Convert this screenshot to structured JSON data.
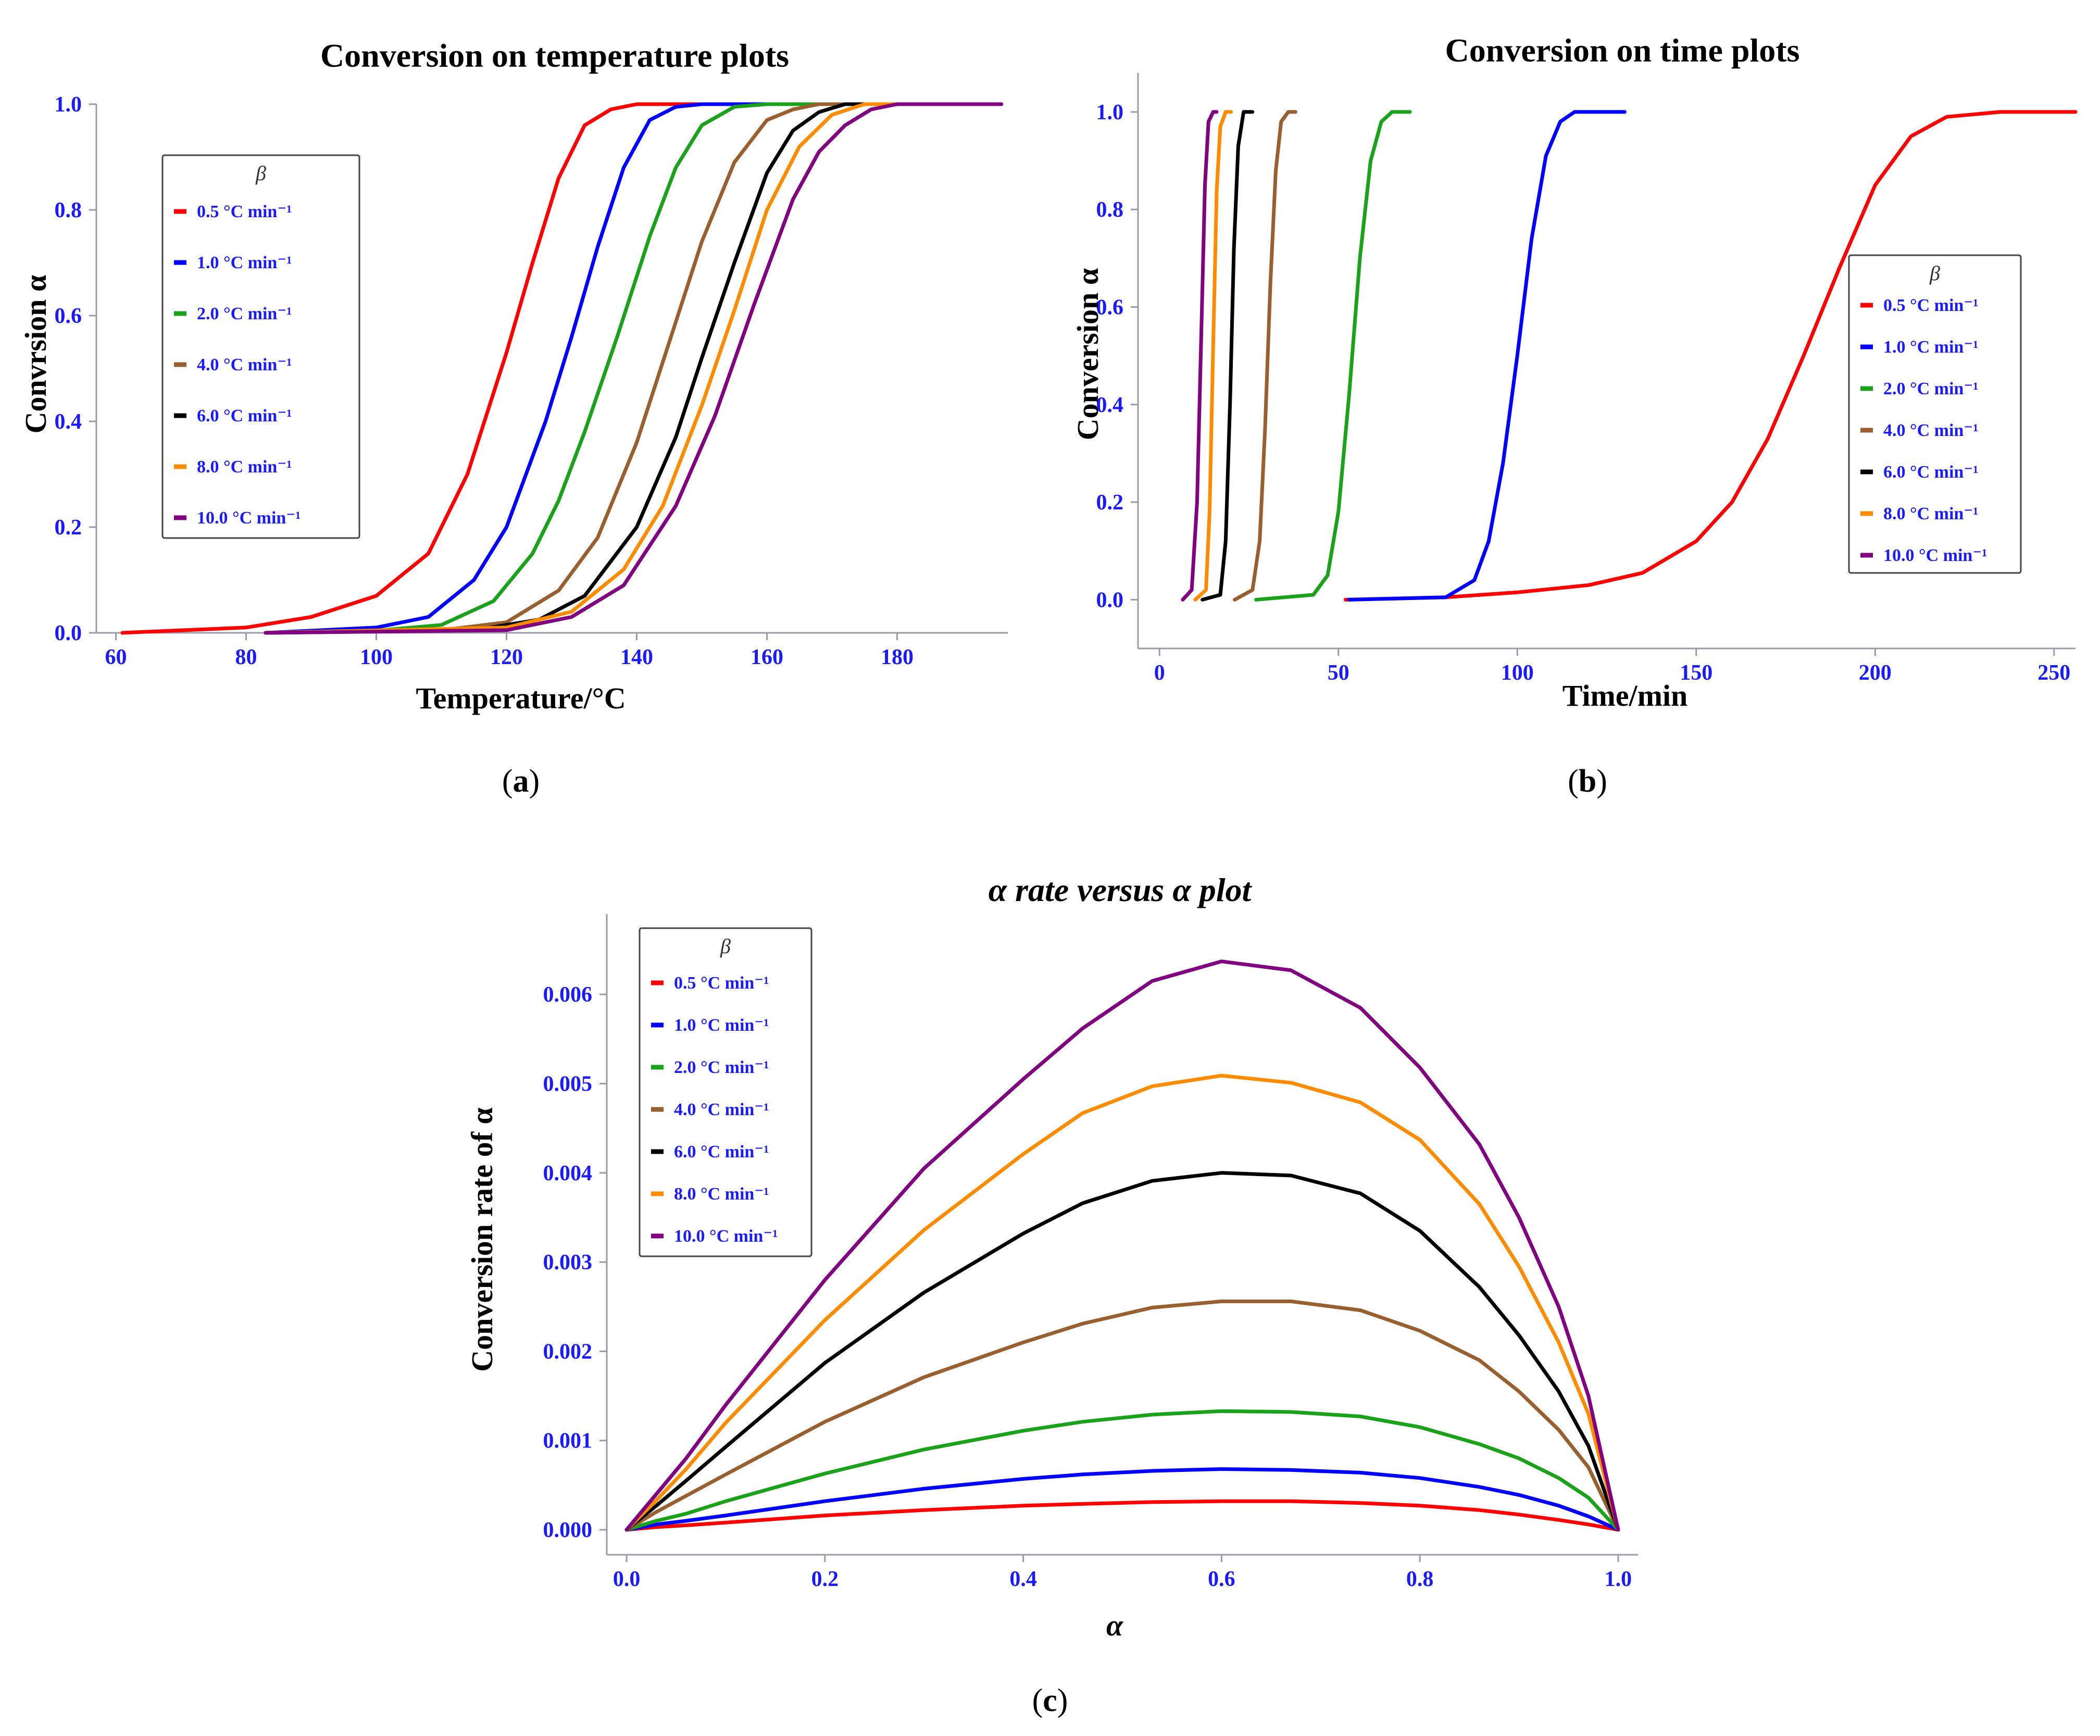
{
  "colors": {
    "text": "#1a1aff",
    "axis": "#9a9aa8",
    "series": [
      "#ff0000",
      "#0000ff",
      "#1aa31a",
      "#9a5f2e",
      "#000000",
      "#ff8c00",
      "#800080"
    ]
  },
  "chart_data": [
    {
      "type": "line",
      "panel": "(a)",
      "panel_prefix": "(",
      "panel_letter": "a",
      "panel_suffix": ")",
      "title": "Conversion on temperature plots",
      "xlabel": "Temperature/°C",
      "ylabel": "Convrsion α",
      "xlim": [
        57,
        197
      ],
      "ylim": [
        0,
        1
      ],
      "xticks": [
        60,
        80,
        100,
        120,
        140,
        160,
        180
      ],
      "yticks": [
        0.0,
        0.2,
        0.4,
        0.6,
        0.8,
        1.0
      ],
      "legend_title": "β",
      "legend_location": "upper-left",
      "series": [
        {
          "name": "0.5 °C min⁻¹",
          "x": [
            61,
            80,
            90,
            100,
            108,
            114,
            120,
            124,
            128,
            132,
            136,
            140,
            148,
            196
          ],
          "y": [
            0.0,
            0.01,
            0.03,
            0.07,
            0.15,
            0.3,
            0.53,
            0.7,
            0.86,
            0.96,
            0.99,
            1.0,
            1.0,
            1.0
          ]
        },
        {
          "name": "1.0 °C min⁻¹",
          "x": [
            83,
            100,
            108,
            115,
            120,
            126,
            130,
            134,
            138,
            142,
            146,
            150,
            196
          ],
          "y": [
            0.0,
            0.01,
            0.03,
            0.1,
            0.2,
            0.4,
            0.56,
            0.73,
            0.88,
            0.97,
            0.995,
            1.0,
            1.0
          ]
        },
        {
          "name": "2.0 °C min⁻¹",
          "x": [
            83,
            100,
            110,
            118,
            124,
            128,
            132,
            137,
            142,
            146,
            150,
            155,
            160,
            196
          ],
          "y": [
            0.0,
            0.004,
            0.015,
            0.06,
            0.15,
            0.25,
            0.38,
            0.56,
            0.75,
            0.88,
            0.96,
            0.995,
            1.0,
            1.0
          ]
        },
        {
          "name": "4.0 °C min⁻¹",
          "x": [
            83,
            110,
            120,
            128,
            134,
            140,
            145,
            150,
            155,
            160,
            164,
            168,
            196
          ],
          "y": [
            0.0,
            0.005,
            0.02,
            0.08,
            0.18,
            0.36,
            0.55,
            0.74,
            0.89,
            0.97,
            0.99,
            1.0,
            1.0
          ]
        },
        {
          "name": "6.0 °C min⁻¹",
          "x": [
            83,
            115,
            125,
            132,
            140,
            146,
            150,
            155,
            160,
            164,
            168,
            172,
            196
          ],
          "y": [
            0.0,
            0.005,
            0.025,
            0.07,
            0.2,
            0.37,
            0.52,
            0.7,
            0.87,
            0.95,
            0.985,
            1.0,
            1.0
          ]
        },
        {
          "name": "8.0 °C min⁻¹",
          "x": [
            83,
            120,
            130,
            138,
            144,
            150,
            155,
            160,
            165,
            170,
            175,
            196
          ],
          "y": [
            0.0,
            0.01,
            0.04,
            0.12,
            0.24,
            0.43,
            0.61,
            0.8,
            0.92,
            0.98,
            1.0,
            1.0
          ]
        },
        {
          "name": "10.0 °C min⁻¹",
          "x": [
            83,
            120,
            130,
            138,
            146,
            152,
            158,
            164,
            168,
            172,
            176,
            180,
            196
          ],
          "y": [
            0.0,
            0.005,
            0.03,
            0.09,
            0.24,
            0.41,
            0.62,
            0.82,
            0.91,
            0.96,
            0.99,
            1.0,
            1.0
          ]
        }
      ]
    },
    {
      "type": "line",
      "panel": "(b)",
      "panel_prefix": "(",
      "panel_letter": "b",
      "panel_suffix": ")",
      "title": "Conversion on time plots",
      "xlabel": "Time/min",
      "ylabel": "Conversion α",
      "xlim": [
        -6,
        256
      ],
      "ylim": [
        -0.1,
        1.08
      ],
      "xticks": [
        0,
        50,
        100,
        150,
        200,
        250
      ],
      "yticks": [
        0.0,
        0.2,
        0.4,
        0.6,
        0.8,
        1.0
      ],
      "legend_title": "β",
      "legend_location": "right",
      "series": [
        {
          "name": "0.5 °C min⁻¹",
          "x": [
            52,
            80,
            100,
            120,
            135,
            150,
            160,
            170,
            180,
            190,
            200,
            210,
            220,
            235,
            256
          ],
          "y": [
            0.0,
            0.005,
            0.015,
            0.03,
            0.055,
            0.12,
            0.2,
            0.33,
            0.5,
            0.68,
            0.85,
            0.95,
            0.99,
            1.0,
            1.0
          ]
        },
        {
          "name": "1.0 °C min⁻¹",
          "x": [
            53,
            80,
            88,
            92,
            96,
            100,
            104,
            108,
            112,
            116,
            120,
            130
          ],
          "y": [
            0.0,
            0.005,
            0.04,
            0.12,
            0.28,
            0.5,
            0.74,
            0.91,
            0.98,
            1.0,
            1.0,
            1.0
          ]
        },
        {
          "name": "2.0 °C min⁻¹",
          "x": [
            27,
            43,
            47,
            50,
            53,
            56,
            59,
            62,
            65,
            70
          ],
          "y": [
            0.0,
            0.01,
            0.05,
            0.18,
            0.42,
            0.7,
            0.9,
            0.98,
            1.0,
            1.0
          ]
        },
        {
          "name": "4.0 °C min⁻¹",
          "x": [
            21,
            26,
            28,
            29.5,
            31,
            32.5,
            34,
            36,
            38
          ],
          "y": [
            0.0,
            0.02,
            0.12,
            0.35,
            0.65,
            0.88,
            0.98,
            1.0,
            1.0
          ]
        },
        {
          "name": "6.0 °C min⁻¹",
          "x": [
            12,
            17,
            18.5,
            19.7,
            20.8,
            22,
            23.5,
            26
          ],
          "y": [
            0.0,
            0.01,
            0.12,
            0.4,
            0.72,
            0.93,
            1.0,
            1.0
          ]
        },
        {
          "name": "8.0 °C min⁻¹",
          "x": [
            10,
            13,
            14,
            15,
            16,
            17,
            18.5,
            20
          ],
          "y": [
            0.0,
            0.02,
            0.18,
            0.52,
            0.84,
            0.97,
            1.0,
            1.0
          ]
        },
        {
          "name": "10.0 °C min⁻¹",
          "x": [
            6.5,
            9,
            10.5,
            11.7,
            12.7,
            13.7,
            15,
            16
          ],
          "y": [
            0.0,
            0.02,
            0.2,
            0.55,
            0.85,
            0.98,
            1.0,
            1.0
          ]
        }
      ]
    },
    {
      "type": "line",
      "panel": "(c)",
      "panel_prefix": "(",
      "panel_letter": "c",
      "panel_suffix": ")",
      "title": "α rate versus α plot",
      "xlabel": "α",
      "ylabel": "Conversion rate of α",
      "xlim": [
        -0.02,
        1.02
      ],
      "ylim": [
        -0.00028,
        0.0069
      ],
      "xticks": [
        0.0,
        0.2,
        0.4,
        0.6,
        0.8,
        1.0
      ],
      "yticks": [
        0.0,
        0.001,
        0.002,
        0.003,
        0.004,
        0.005,
        0.006
      ],
      "xticklabels": [
        "0.0",
        "0.2",
        "0.4",
        "0.6",
        "0.8",
        "1.0"
      ],
      "yticklabels": [
        "0.000",
        "0.001",
        "0.002",
        "0.003",
        "0.004",
        "0.005",
        "0.006"
      ],
      "legend_title": "β",
      "legend_location": "upper-left",
      "x": [
        0,
        0.03,
        0.06,
        0.1,
        0.2,
        0.3,
        0.4,
        0.46,
        0.53,
        0.6,
        0.67,
        0.74,
        0.8,
        0.86,
        0.9,
        0.94,
        0.97,
        1.0
      ],
      "series": [
        {
          "name": "0.5 °C min⁻¹",
          "values": [
            0.0,
            3e-05,
            5e-05,
            8e-05,
            0.00016,
            0.00022,
            0.00027,
            0.00029,
            0.00031,
            0.00032,
            0.00032,
            0.0003,
            0.00027,
            0.00022,
            0.00017,
            0.00011,
            6e-05,
            0.0
          ]
        },
        {
          "name": "1.0 °C min⁻¹",
          "values": [
            0.0,
            6e-05,
            0.0001,
            0.00016,
            0.00032,
            0.00046,
            0.00057,
            0.00062,
            0.00066,
            0.00068,
            0.00067,
            0.00064,
            0.00058,
            0.00048,
            0.00039,
            0.00027,
            0.00015,
            0.0
          ]
        },
        {
          "name": "2.0 °C min⁻¹",
          "values": [
            0.0,
            0.0001,
            0.00018,
            0.00032,
            0.00063,
            0.0009,
            0.00111,
            0.00121,
            0.00129,
            0.00133,
            0.00132,
            0.00127,
            0.00115,
            0.00096,
            0.0008,
            0.00058,
            0.00036,
            0.0
          ]
        },
        {
          "name": "4.0 °C min⁻¹",
          "values": [
            0.0,
            0.0002,
            0.00038,
            0.00062,
            0.00121,
            0.00171,
            0.0021,
            0.00231,
            0.00249,
            0.00256,
            0.00256,
            0.00246,
            0.00223,
            0.0019,
            0.00155,
            0.00112,
            0.0007,
            0.0
          ]
        },
        {
          "name": "6.0 °C min⁻¹",
          "values": [
            0.0,
            0.00027,
            0.00055,
            0.00093,
            0.00187,
            0.00266,
            0.00332,
            0.00366,
            0.00391,
            0.004,
            0.00397,
            0.00377,
            0.00335,
            0.00272,
            0.00218,
            0.00155,
            0.00094,
            0.0
          ]
        },
        {
          "name": "8.0 °C min⁻¹",
          "values": [
            0.0,
            0.00033,
            0.00068,
            0.0012,
            0.00235,
            0.00336,
            0.00421,
            0.00467,
            0.00497,
            0.00509,
            0.00501,
            0.00479,
            0.00437,
            0.00365,
            0.00295,
            0.0021,
            0.0013,
            0.0
          ]
        },
        {
          "name": "10.0 °C min⁻¹",
          "values": [
            0.0,
            0.0004,
            0.0008,
            0.0014,
            0.0028,
            0.00405,
            0.00505,
            0.00562,
            0.00615,
            0.00637,
            0.00627,
            0.00585,
            0.00518,
            0.00432,
            0.0035,
            0.0025,
            0.0015,
            0.0
          ]
        }
      ]
    }
  ]
}
